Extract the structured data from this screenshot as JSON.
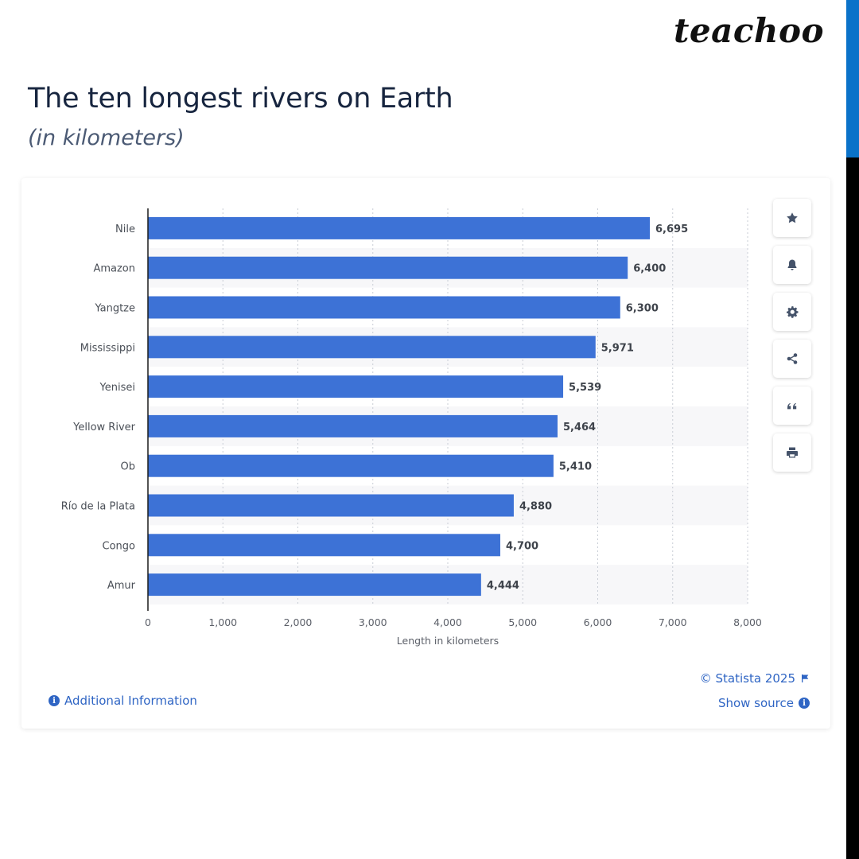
{
  "brand": "teachoo",
  "title": "The ten longest rivers on Earth",
  "subtitle": "(in kilometers)",
  "toolbar": {
    "items": [
      {
        "icon": "star-icon"
      },
      {
        "icon": "bell-icon"
      },
      {
        "icon": "gear-icon"
      },
      {
        "icon": "share-icon"
      },
      {
        "icon": "quote-icon"
      },
      {
        "icon": "print-icon"
      }
    ]
  },
  "footer": {
    "additional_info": "Additional Information",
    "copyright": "© Statista 2025",
    "show_source": "Show source"
  },
  "colors": {
    "bar": "#3d72d6",
    "accent": "#2f65c4",
    "title": "#17253f"
  },
  "chart_data": {
    "type": "bar",
    "orientation": "horizontal",
    "categories": [
      "Nile",
      "Amazon",
      "Yangtze",
      "Mississippi",
      "Yenisei",
      "Yellow River",
      "Ob",
      "Río de la Plata",
      "Congo",
      "Amur"
    ],
    "values": [
      6695,
      6400,
      6300,
      5971,
      5539,
      5464,
      5410,
      4880,
      4700,
      4444
    ],
    "value_labels": [
      "6,695",
      "6,400",
      "6,300",
      "5,971",
      "5,539",
      "5,464",
      "5,410",
      "4,880",
      "4,700",
      "4,444"
    ],
    "xlabel": "Length in kilometers",
    "xlim": [
      0,
      8000
    ],
    "xticks": [
      0,
      1000,
      2000,
      3000,
      4000,
      5000,
      6000,
      7000,
      8000
    ],
    "xtick_labels": [
      "0",
      "1,000",
      "2,000",
      "3,000",
      "4,000",
      "5,000",
      "6,000",
      "7,000",
      "8,000"
    ],
    "grid": "vertical dotted",
    "legend": "none"
  }
}
